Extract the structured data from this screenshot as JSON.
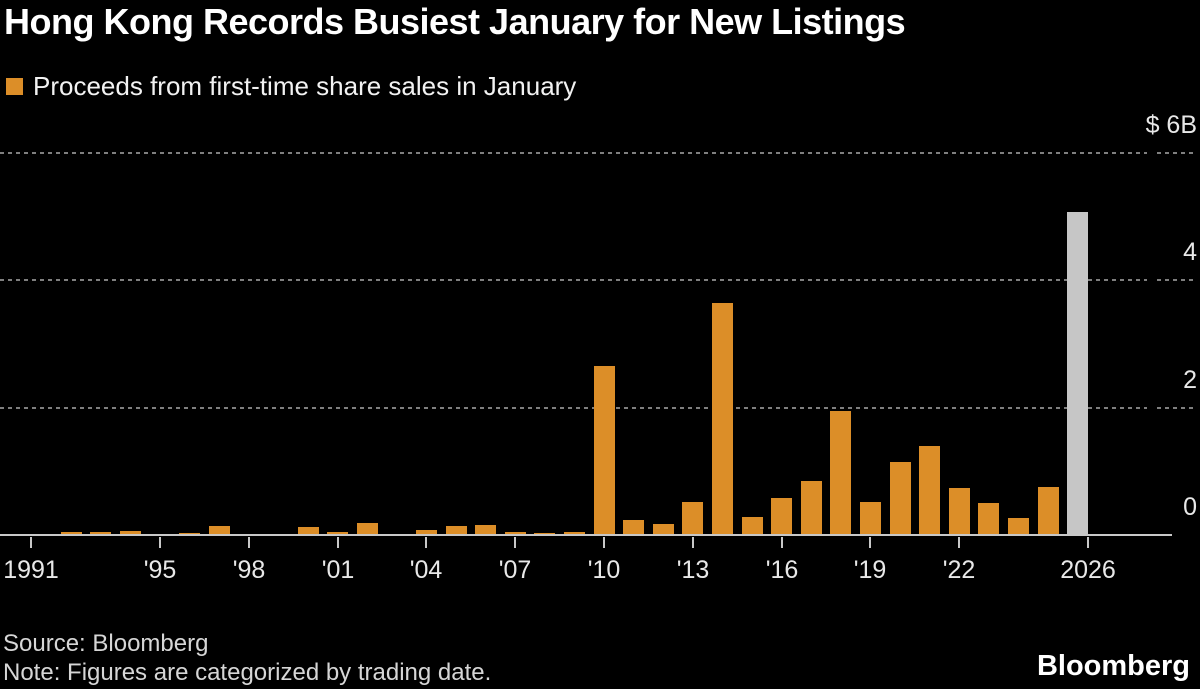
{
  "title": "Hong Kong Records Busiest January for New Listings",
  "legend": {
    "label": "Proceeds from first-time share sales in January",
    "swatch_color": "#DC8E28"
  },
  "footer": {
    "source": "Source: Bloomberg",
    "note": "Note: Figures are categorized by trading date.",
    "brand": "Bloomberg"
  },
  "colors": {
    "background": "#000000",
    "bar": "#DC8E28",
    "highlight_bar": "#C6C6C6",
    "gridline": "#7F7F7F",
    "axis": "#C8C8C8",
    "tick_label": "#E8E8E8"
  },
  "chart_data": {
    "type": "bar",
    "title": "Hong Kong Records Busiest January for New Listings",
    "series_label": "Proceeds from first-time share sales in January",
    "unit": "USD billions",
    "categories": [
      1991,
      1992,
      1993,
      1994,
      1995,
      1996,
      1997,
      1998,
      1999,
      2000,
      2001,
      2002,
      2003,
      2004,
      2005,
      2006,
      2007,
      2008,
      2009,
      2010,
      2011,
      2012,
      2013,
      2014,
      2015,
      2016,
      2017,
      2018,
      2019,
      2020,
      2021,
      2022,
      2023,
      2024,
      2025,
      2026
    ],
    "values": [
      0.02,
      0.05,
      0.04,
      0.06,
      0.02,
      0.03,
      0.14,
      0.02,
      0.02,
      0.12,
      0.05,
      0.19,
      0.02,
      0.08,
      0.14,
      0.16,
      0.04,
      0.03,
      0.04,
      2.65,
      0.23,
      0.18,
      0.51,
      3.64,
      0.29,
      0.58,
      0.84,
      1.95,
      0.52,
      1.14,
      1.4,
      0.74,
      0.5,
      0.26,
      0.75,
      5.07
    ],
    "highlight_category": 2026,
    "ylim": [
      0,
      6
    ],
    "yticks": [
      {
        "value": 6,
        "label": "$ 6B"
      },
      {
        "value": 4,
        "label": "4"
      },
      {
        "value": 2,
        "label": "2"
      },
      {
        "value": 0,
        "label": "0"
      }
    ],
    "xticks": [
      {
        "category": 1991,
        "label": "1991"
      },
      {
        "category": 1995,
        "label": "'95"
      },
      {
        "category": 1998,
        "label": "'98"
      },
      {
        "category": 2001,
        "label": "'01"
      },
      {
        "category": 2004,
        "label": "'04"
      },
      {
        "category": 2007,
        "label": "'07"
      },
      {
        "category": 2010,
        "label": "'10"
      },
      {
        "category": 2013,
        "label": "'13"
      },
      {
        "category": 2016,
        "label": "'16"
      },
      {
        "category": 2019,
        "label": "'19"
      },
      {
        "category": 2022,
        "label": "'22"
      },
      {
        "category": 2026,
        "label": "2026"
      }
    ],
    "grid": "horizontal dashed lines at 2, 4 and 6",
    "legend_position": "top-left"
  }
}
